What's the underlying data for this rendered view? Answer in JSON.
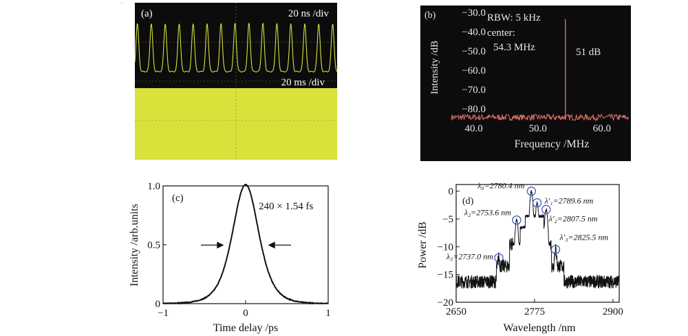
{
  "colors": {
    "scope_bg": "#0c0c0c",
    "scope_trace": "#d8e23a",
    "scope_grid": "#7a7a5a",
    "rf_bg": "#0c0c0c",
    "rf_trace": "#e0706e",
    "rf_text": "#e8e8e8",
    "line": "#111111",
    "marker": "#3a5bbf"
  },
  "chart_data": [
    {
      "panel": "(a)",
      "type": "line",
      "title": "",
      "upper_trace": {
        "label": "20 ns /div",
        "description": "pulse train",
        "pulse_count": 15,
        "periods_visible": 14.5
      },
      "lower_trace": {
        "label": "20 ms /div",
        "description": "envelope (filled)"
      }
    },
    {
      "panel": "(b)",
      "type": "line",
      "xlabel": "Frequency /MHz",
      "ylabel": "Intensity /dB",
      "xlim": [
        36.5,
        64.2
      ],
      "ylim": [
        -86.5,
        -26.5
      ],
      "xticks": [
        40,
        50,
        60
      ],
      "xtick_labels": [
        "40.0",
        "50.0",
        "60.0"
      ],
      "yticks": [
        -30,
        -40,
        -50,
        -60,
        -70,
        -80
      ],
      "ytick_labels": [
        "−30.0",
        "−40.0",
        "−50.0",
        "−60.0",
        "−70.0",
        "−80.0"
      ],
      "annotations": [
        "RBW: 5 kHz",
        "center:",
        "54.3 MHz",
        "51 dB"
      ],
      "peak": {
        "x": 54.3,
        "y": -33.5
      },
      "noise_floor": -84.5
    },
    {
      "panel": "(c)",
      "type": "line",
      "xlabel": "Time delay /ps",
      "ylabel": "Intensity /arb.units",
      "xlim": [
        -1,
        1
      ],
      "ylim": [
        0,
        1.0
      ],
      "xticks": [
        -1,
        0,
        1
      ],
      "xtick_labels": [
        "−1",
        "0",
        "1"
      ],
      "yticks": [
        0,
        0.5,
        1.0
      ],
      "ytick_labels": [
        "0",
        "0.5",
        "1.0"
      ],
      "annotation": "240 × 1.54 fs",
      "fwhm_ps": 0.37,
      "peak": {
        "x": 0,
        "y": 0.98
      }
    },
    {
      "panel": "(d)",
      "type": "line",
      "xlabel": "Wavelength /nm",
      "ylabel": "Power /dB",
      "xlim": [
        2650,
        2910
      ],
      "ylim": [
        -20,
        1.2
      ],
      "xticks": [
        2650,
        2775,
        2900
      ],
      "xtick_labels": [
        "2650",
        "2775",
        "2900"
      ],
      "yticks": [
        0,
        -5,
        -10,
        -15,
        -20
      ],
      "ytick_labels": [
        "0",
        "−5",
        "−10",
        "−15",
        "−20"
      ],
      "sidebands": [
        {
          "label": "λ₀=2780.4 nm",
          "x": 2770.0,
          "y": 0
        },
        {
          "label": "λ′₁=2789.6 nm",
          "x": 2779.0,
          "y": -2.1
        },
        {
          "label": "λ₂=2753.6 nm",
          "x": 2746.5,
          "y": -5.2
        },
        {
          "label": "λ′₂=2807.5 nm",
          "x": 2793.5,
          "y": -3.3
        },
        {
          "label": "λ₃=2737.0 nm",
          "x": 2718.0,
          "y": -12.0
        },
        {
          "label": "λ′₃=2825.5 nm",
          "x": 2808.5,
          "y": -10.5
        }
      ]
    }
  ]
}
